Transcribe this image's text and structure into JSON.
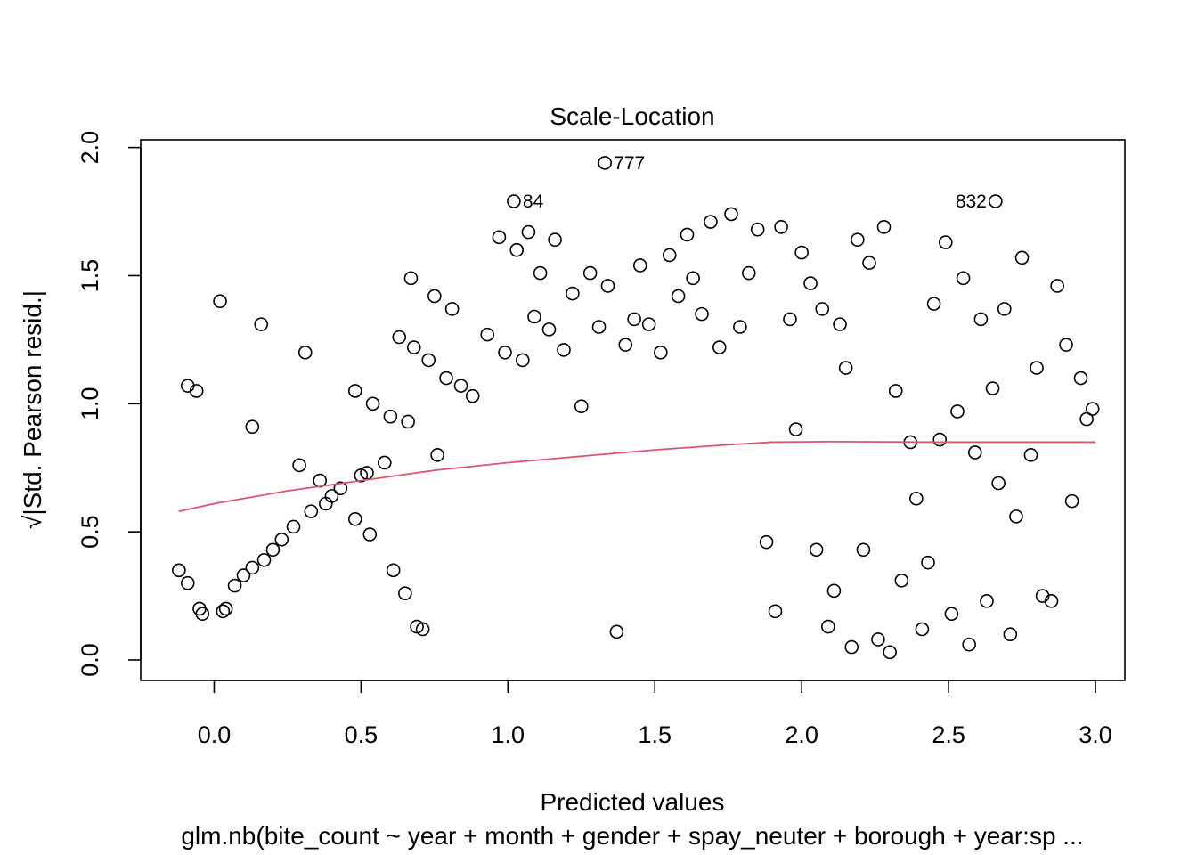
{
  "chart_data": {
    "type": "scatter",
    "title": "Scale-Location",
    "xlabel": "Predicted values",
    "ylabel": "√|Std. Pearson resid.|",
    "subtitle": "glm.nb(bite_count ~ year + month + gender + spay_neuter + borough + year:sp ...",
    "xlim": [
      -0.25,
      3.1
    ],
    "ylim": [
      -0.08,
      2.03
    ],
    "x_ticks": [
      "0.0",
      "0.5",
      "1.0",
      "1.5",
      "2.0",
      "2.5",
      "3.0"
    ],
    "y_ticks": [
      "0.0",
      "0.5",
      "1.0",
      "1.5",
      "2.0"
    ],
    "grid": false,
    "point_color": "#000000",
    "smooth_color": "#DF536B",
    "smooth_line": {
      "x": [
        -0.12,
        0.0,
        0.25,
        0.5,
        0.75,
        1.0,
        1.25,
        1.5,
        1.75,
        1.9,
        2.1,
        2.5,
        3.0
      ],
      "y": [
        0.58,
        0.61,
        0.66,
        0.7,
        0.74,
        0.77,
        0.795,
        0.82,
        0.84,
        0.85,
        0.852,
        0.85,
        0.85
      ]
    },
    "labeled_points": [
      {
        "label": "777",
        "x": 1.33,
        "y": 1.94
      },
      {
        "label": "84",
        "x": 1.02,
        "y": 1.79
      },
      {
        "label": "832",
        "x": 2.66,
        "y": 1.79
      }
    ],
    "points": [
      [
        -0.12,
        0.35
      ],
      [
        -0.09,
        0.3
      ],
      [
        -0.05,
        0.2
      ],
      [
        -0.04,
        0.18
      ],
      [
        0.03,
        0.19
      ],
      [
        0.04,
        0.2
      ],
      [
        -0.09,
        1.07
      ],
      [
        -0.06,
        1.05
      ],
      [
        0.02,
        1.4
      ],
      [
        0.16,
        1.31
      ],
      [
        0.13,
        0.91
      ],
      [
        0.31,
        1.2
      ],
      [
        0.07,
        0.29
      ],
      [
        0.1,
        0.33
      ],
      [
        0.13,
        0.36
      ],
      [
        0.17,
        0.39
      ],
      [
        0.2,
        0.43
      ],
      [
        0.23,
        0.47
      ],
      [
        0.27,
        0.52
      ],
      [
        0.29,
        0.76
      ],
      [
        0.33,
        0.58
      ],
      [
        0.36,
        0.7
      ],
      [
        0.38,
        0.61
      ],
      [
        0.4,
        0.64
      ],
      [
        0.43,
        0.67
      ],
      [
        0.48,
        0.55
      ],
      [
        0.5,
        0.72
      ],
      [
        0.52,
        0.73
      ],
      [
        0.53,
        0.49
      ],
      [
        0.48,
        1.05
      ],
      [
        0.54,
        1.0
      ],
      [
        0.58,
        0.77
      ],
      [
        0.6,
        0.95
      ],
      [
        0.61,
        0.35
      ],
      [
        0.63,
        1.26
      ],
      [
        0.65,
        0.26
      ],
      [
        0.66,
        0.93
      ],
      [
        0.67,
        1.49
      ],
      [
        0.68,
        1.22
      ],
      [
        0.69,
        0.13
      ],
      [
        0.71,
        0.12
      ],
      [
        0.73,
        1.17
      ],
      [
        0.75,
        1.42
      ],
      [
        0.76,
        0.8
      ],
      [
        0.79,
        1.1
      ],
      [
        0.81,
        1.37
      ],
      [
        0.84,
        1.07
      ],
      [
        0.88,
        1.03
      ],
      [
        0.93,
        1.27
      ],
      [
        0.97,
        1.65
      ],
      [
        0.99,
        1.2
      ],
      [
        1.03,
        1.6
      ],
      [
        1.05,
        1.17
      ],
      [
        1.07,
        1.67
      ],
      [
        1.09,
        1.34
      ],
      [
        1.11,
        1.51
      ],
      [
        1.14,
        1.29
      ],
      [
        1.16,
        1.64
      ],
      [
        1.19,
        1.21
      ],
      [
        1.22,
        1.43
      ],
      [
        1.25,
        0.99
      ],
      [
        1.28,
        1.51
      ],
      [
        1.31,
        1.3
      ],
      [
        1.34,
        1.46
      ],
      [
        1.37,
        0.11
      ],
      [
        1.4,
        1.23
      ],
      [
        1.43,
        1.33
      ],
      [
        1.45,
        1.54
      ],
      [
        1.48,
        1.31
      ],
      [
        1.52,
        1.2
      ],
      [
        1.55,
        1.58
      ],
      [
        1.58,
        1.42
      ],
      [
        1.61,
        1.66
      ],
      [
        1.63,
        1.49
      ],
      [
        1.66,
        1.35
      ],
      [
        1.69,
        1.71
      ],
      [
        1.72,
        1.22
      ],
      [
        1.76,
        1.74
      ],
      [
        1.79,
        1.3
      ],
      [
        1.82,
        1.51
      ],
      [
        1.85,
        1.68
      ],
      [
        1.88,
        0.46
      ],
      [
        1.91,
        0.19
      ],
      [
        1.93,
        1.69
      ],
      [
        1.96,
        1.33
      ],
      [
        1.98,
        0.9
      ],
      [
        2.0,
        1.59
      ],
      [
        2.03,
        1.47
      ],
      [
        2.05,
        0.43
      ],
      [
        2.07,
        1.37
      ],
      [
        2.09,
        0.13
      ],
      [
        2.11,
        0.27
      ],
      [
        2.13,
        1.31
      ],
      [
        2.15,
        1.14
      ],
      [
        2.17,
        0.05
      ],
      [
        2.19,
        1.64
      ],
      [
        2.21,
        0.43
      ],
      [
        2.23,
        1.55
      ],
      [
        2.26,
        0.08
      ],
      [
        2.28,
        1.69
      ],
      [
        2.3,
        0.03
      ],
      [
        2.32,
        1.05
      ],
      [
        2.34,
        0.31
      ],
      [
        2.37,
        0.85
      ],
      [
        2.39,
        0.63
      ],
      [
        2.41,
        0.12
      ],
      [
        2.43,
        0.38
      ],
      [
        2.45,
        1.39
      ],
      [
        2.47,
        0.86
      ],
      [
        2.49,
        1.63
      ],
      [
        2.51,
        0.18
      ],
      [
        2.53,
        0.97
      ],
      [
        2.55,
        1.49
      ],
      [
        2.57,
        0.06
      ],
      [
        2.59,
        0.81
      ],
      [
        2.61,
        1.33
      ],
      [
        2.63,
        0.23
      ],
      [
        2.65,
        1.06
      ],
      [
        2.67,
        0.69
      ],
      [
        2.69,
        1.37
      ],
      [
        2.71,
        0.1
      ],
      [
        2.73,
        0.56
      ],
      [
        2.75,
        1.57
      ],
      [
        2.78,
        0.8
      ],
      [
        2.8,
        1.14
      ],
      [
        2.82,
        0.25
      ],
      [
        2.85,
        0.23
      ],
      [
        2.87,
        1.46
      ],
      [
        2.9,
        1.23
      ],
      [
        2.92,
        0.62
      ],
      [
        2.95,
        1.1
      ],
      [
        2.97,
        0.94
      ],
      [
        2.99,
        0.98
      ]
    ]
  }
}
